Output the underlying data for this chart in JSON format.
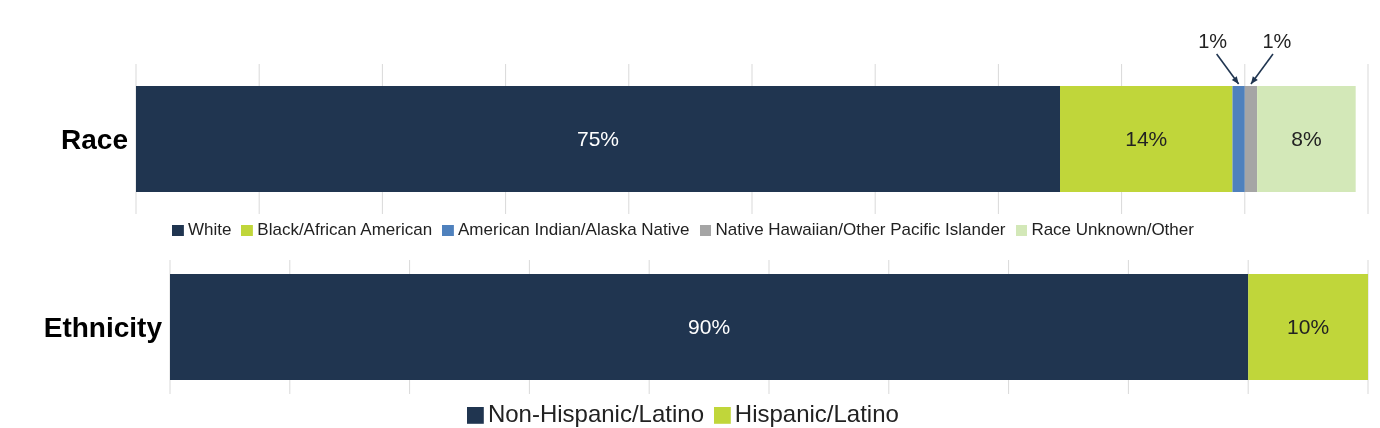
{
  "chart_data": [
    {
      "type": "bar",
      "orientation": "horizontal",
      "stacked": true,
      "categories": [
        "Race"
      ],
      "xlim": [
        0,
        100
      ],
      "xticks": [
        {
          "value": 0,
          "label": null
        },
        {
          "value": 10,
          "label": null
        },
        {
          "value": 20,
          "label": null
        },
        {
          "value": 30,
          "label": null
        },
        {
          "value": 40,
          "label": null
        },
        {
          "value": 50,
          "label": null
        },
        {
          "value": 60,
          "label": null
        },
        {
          "value": 70,
          "label": null
        },
        {
          "value": 80,
          "label": null
        },
        {
          "value": 90,
          "label": null
        },
        {
          "value": 100,
          "label": null
        }
      ],
      "grid": "x",
      "tick_labels": "y",
      "legend": "bottom",
      "series": [
        {
          "name": "White",
          "color": "#203550",
          "values": [
            75
          ],
          "value_labels": [
            "75%"
          ]
        },
        {
          "name": "Black/African American",
          "color": "#c0d63a",
          "values": [
            14
          ],
          "value_labels": [
            "14%"
          ]
        },
        {
          "name": "American Indian/Alaska Native",
          "color": "#4f81bd",
          "values": [
            1
          ],
          "value_labels": [
            "1%"
          ]
        },
        {
          "name": "Native Hawaiian/Other Pacific Islander",
          "color": "#a5a5a5",
          "values": [
            1
          ],
          "value_labels": [
            "1%"
          ]
        },
        {
          "name": "Race Unknown/Other",
          "color": "#d3e8b8",
          "values": [
            8
          ],
          "value_labels": [
            "8%"
          ]
        }
      ]
    },
    {
      "type": "bar",
      "orientation": "horizontal",
      "stacked": true,
      "categories": [
        "Ethnicity"
      ],
      "xlim": [
        0,
        100
      ],
      "xticks": [
        {
          "value": 0,
          "label": null
        },
        {
          "value": 10,
          "label": null
        },
        {
          "value": 20,
          "label": null
        },
        {
          "value": 30,
          "label": null
        },
        {
          "value": 40,
          "label": null
        },
        {
          "value": 50,
          "label": null
        },
        {
          "value": 60,
          "label": null
        },
        {
          "value": 70,
          "label": null
        },
        {
          "value": 80,
          "label": null
        },
        {
          "value": 90,
          "label": null
        },
        {
          "value": 100,
          "label": null
        }
      ],
      "grid": "x",
      "tick_labels": "y",
      "legend": "bottom",
      "series": [
        {
          "name": "Non-Hispanic/Latino",
          "color": "#203550",
          "values": [
            90
          ],
          "value_labels": [
            "90%"
          ]
        },
        {
          "name": "Hispanic/Latino",
          "color": "#c0d63a",
          "values": [
            10
          ],
          "value_labels": [
            "10%"
          ]
        }
      ]
    }
  ]
}
